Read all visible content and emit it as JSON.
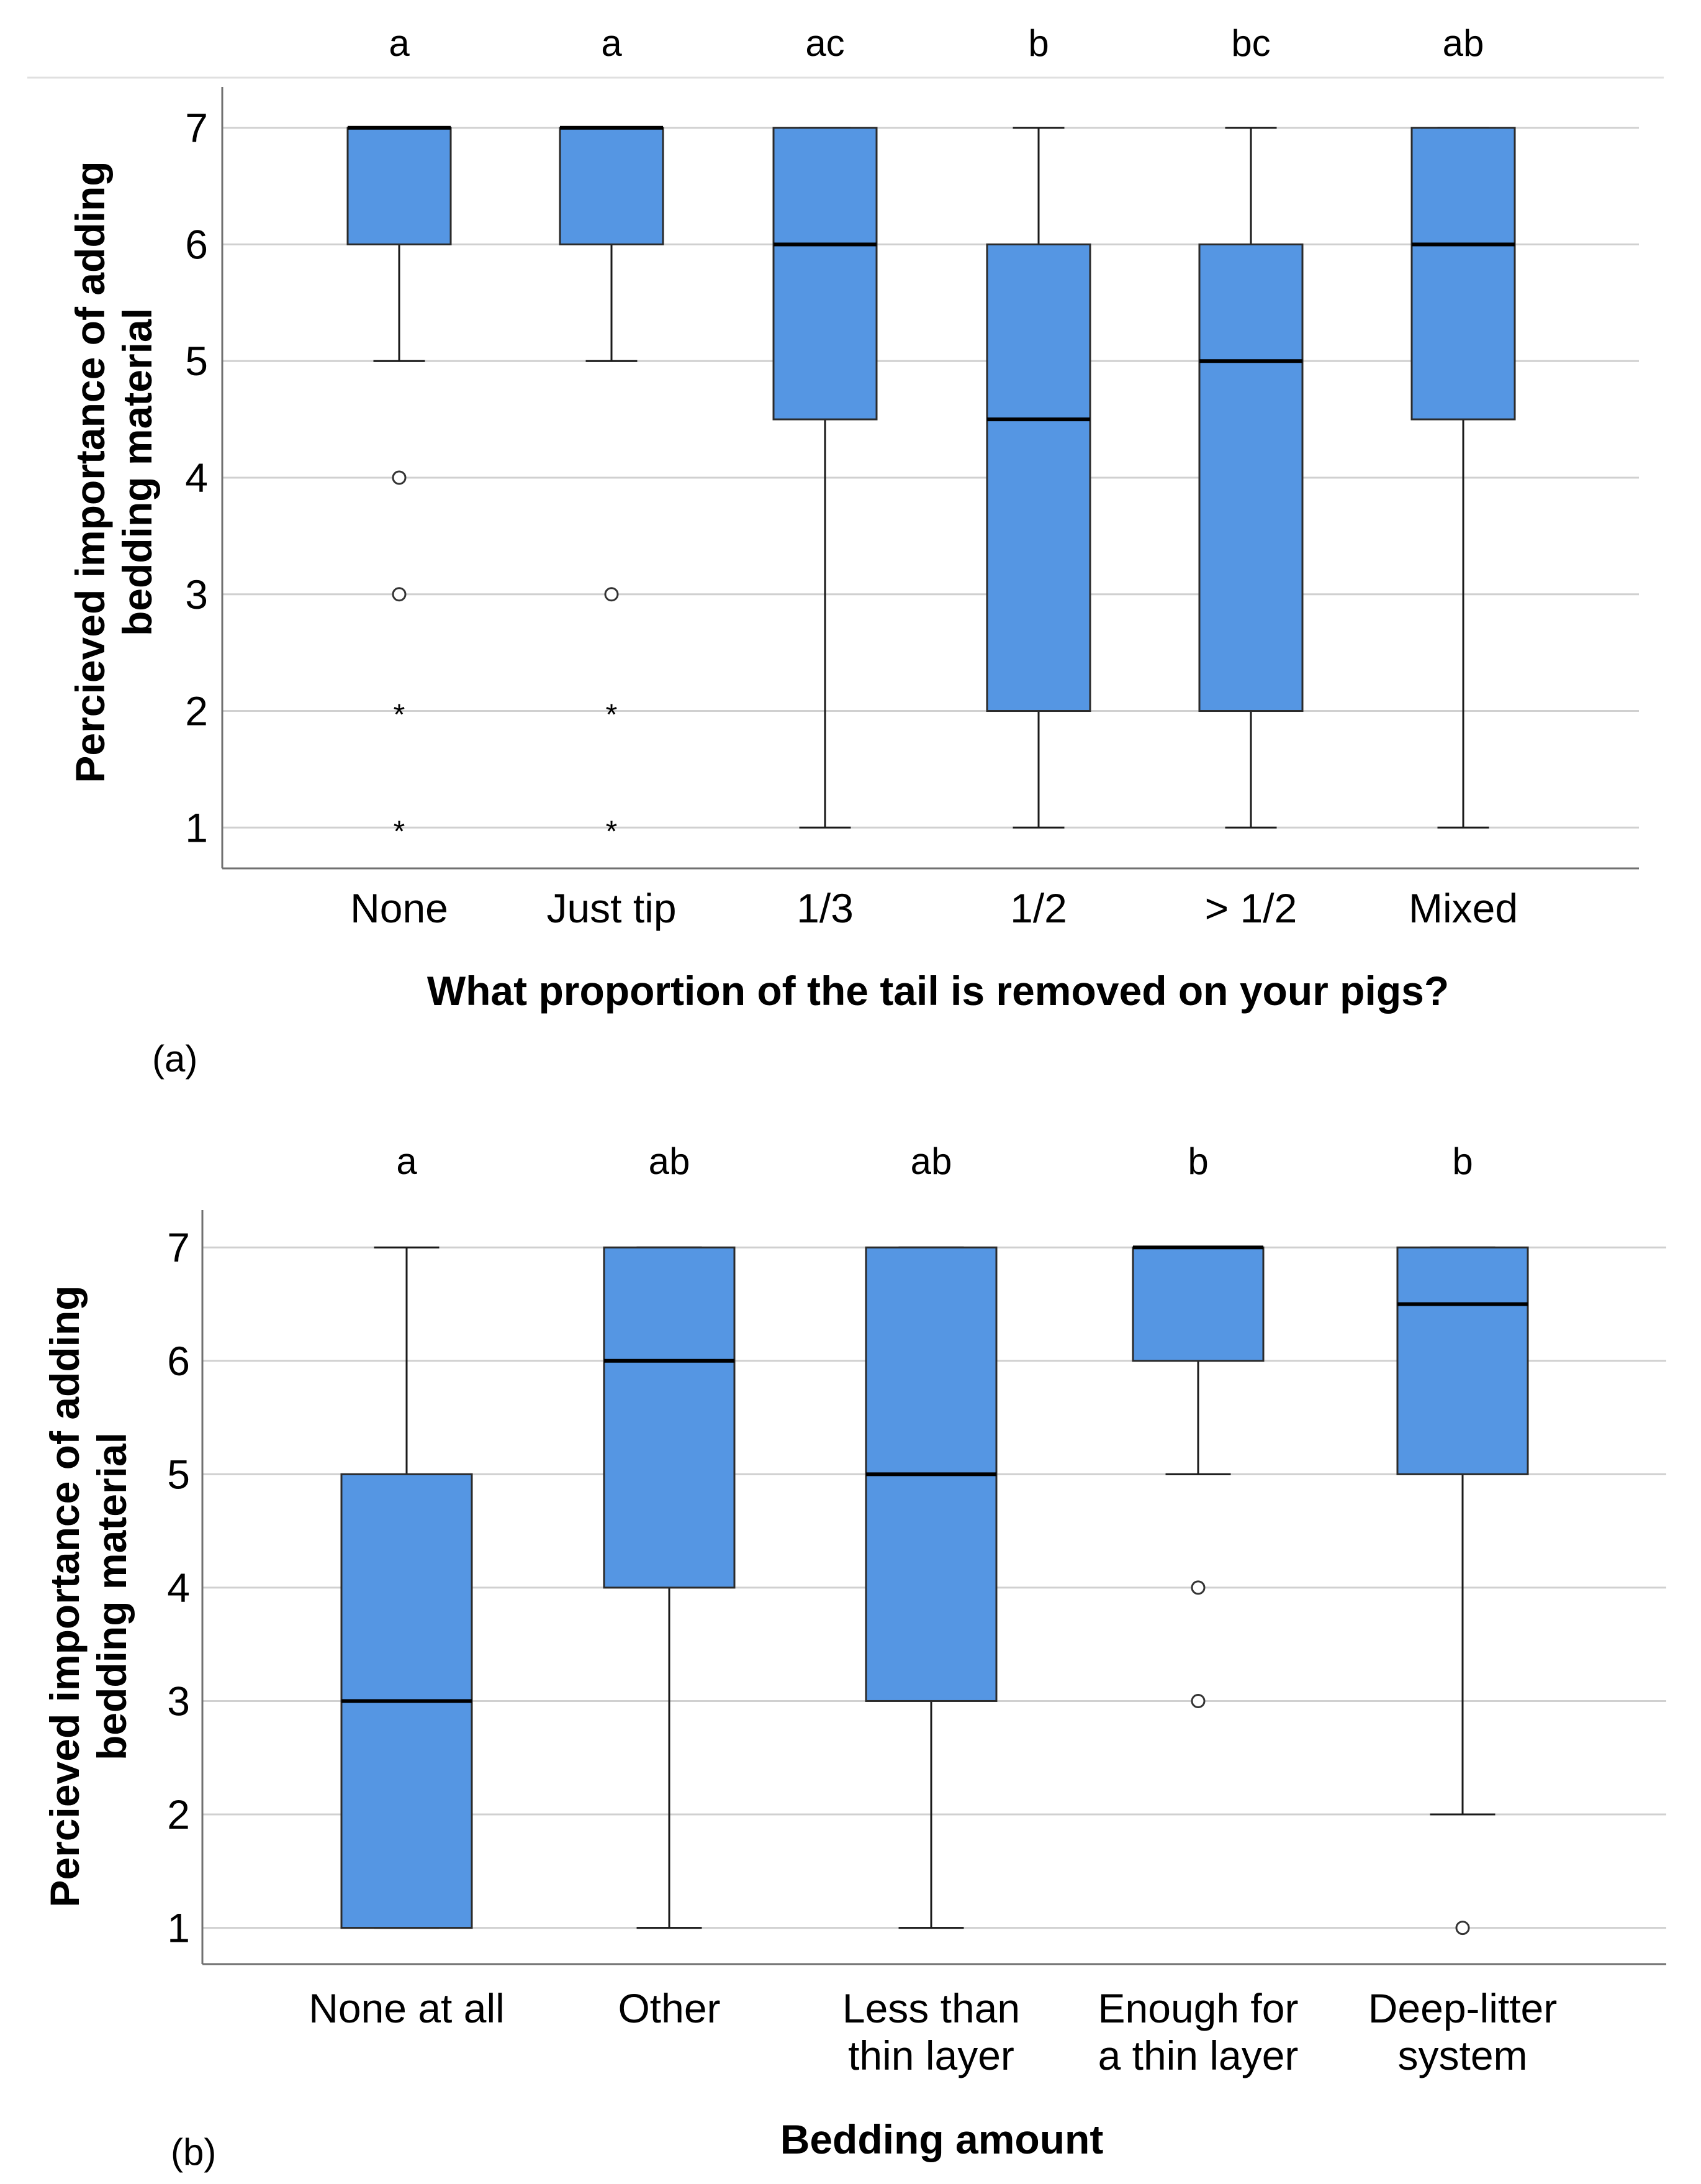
{
  "chart_data": [
    {
      "type": "box",
      "panel_label": "(a)",
      "xlabel": "What proportion of the tail is removed on your pigs?",
      "ylabel_lines": [
        "Percieved importance of adding",
        "bedding material"
      ],
      "ylim": [
        0.65,
        7.35
      ],
      "yticks": [
        "1",
        "2",
        "3",
        "4",
        "5",
        "6",
        "7"
      ],
      "grid": true,
      "colors": {
        "box_fill": "#5596e3",
        "box_stroke": "#2b2b2b",
        "grid": "#d0d0d0",
        "axis": "#707070"
      },
      "categories": [
        {
          "label_lines": [
            "None"
          ],
          "sig": "a",
          "q1": 6,
          "median": 7,
          "q3": 7,
          "whisker_low": 5,
          "whisker_high": 7,
          "outliers": [
            4,
            3
          ],
          "extremes": [
            2,
            1
          ]
        },
        {
          "label_lines": [
            "Just tip"
          ],
          "sig": "a",
          "q1": 6,
          "median": 7,
          "q3": 7,
          "whisker_low": 5,
          "whisker_high": 7,
          "outliers": [
            3
          ],
          "extremes": [
            2,
            1
          ]
        },
        {
          "label_lines": [
            "1/3"
          ],
          "sig": "ac",
          "q1": 4.5,
          "median": 6,
          "q3": 7,
          "whisker_low": 1,
          "whisker_high": 7,
          "outliers": [],
          "extremes": []
        },
        {
          "label_lines": [
            "1/2"
          ],
          "sig": "b",
          "q1": 2,
          "median": 4.5,
          "q3": 6,
          "whisker_low": 1,
          "whisker_high": 7,
          "outliers": [],
          "extremes": []
        },
        {
          "label_lines": [
            "> 1/2"
          ],
          "sig": "bc",
          "q1": 2,
          "median": 5,
          "q3": 6,
          "whisker_low": 1,
          "whisker_high": 7,
          "outliers": [],
          "extremes": []
        },
        {
          "label_lines": [
            "Mixed"
          ],
          "sig": "ab",
          "q1": 4.5,
          "median": 6,
          "q3": 7,
          "whisker_low": 1,
          "whisker_high": 7,
          "outliers": [],
          "extremes": []
        }
      ]
    },
    {
      "type": "box",
      "panel_label": "(b)",
      "xlabel": "Bedding amount",
      "ylabel_lines": [
        "Percieved importance of adding",
        "bedding material"
      ],
      "ylim": [
        0.68,
        7.33
      ],
      "yticks": [
        "1",
        "2",
        "3",
        "4",
        "5",
        "6",
        "7"
      ],
      "grid": true,
      "colors": {
        "box_fill": "#5596e3",
        "box_stroke": "#2b2b2b",
        "grid": "#d0d0d0",
        "axis": "#707070"
      },
      "categories": [
        {
          "label_lines": [
            "None at all"
          ],
          "sig": "a",
          "q1": 1,
          "median": 3,
          "q3": 5,
          "whisker_low": 1,
          "whisker_high": 7,
          "outliers": [],
          "extremes": []
        },
        {
          "label_lines": [
            "Other"
          ],
          "sig": "ab",
          "q1": 4,
          "median": 6,
          "q3": 7,
          "whisker_low": 1,
          "whisker_high": 7,
          "outliers": [],
          "extremes": []
        },
        {
          "label_lines": [
            "Less than",
            "thin layer"
          ],
          "sig": "ab",
          "q1": 3,
          "median": 5,
          "q3": 7,
          "whisker_low": 1,
          "whisker_high": 7,
          "outliers": [],
          "extremes": []
        },
        {
          "label_lines": [
            "Enough for",
            "a thin layer"
          ],
          "sig": "b",
          "q1": 6,
          "median": 7,
          "q3": 7,
          "whisker_low": 5,
          "whisker_high": 7,
          "outliers": [
            4,
            3
          ],
          "extremes": []
        },
        {
          "label_lines": [
            "Deep-litter",
            "system"
          ],
          "sig": "b",
          "q1": 5,
          "median": 6.5,
          "q3": 7,
          "whisker_low": 2,
          "whisker_high": 7,
          "outliers": [
            1
          ],
          "extremes": []
        }
      ]
    }
  ]
}
